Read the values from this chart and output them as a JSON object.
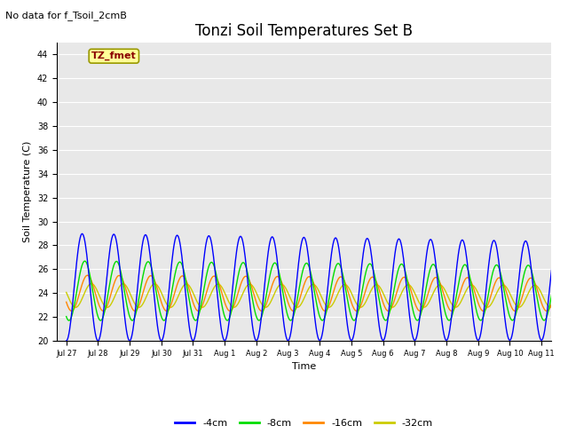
{
  "title": "Tonzi Soil Temperatures Set B",
  "no_data_text": "No data for f_Tsoil_2cmB",
  "annotation_text": "TZ_fmet",
  "annotation_color": "#8b0000",
  "annotation_bg": "#ffff99",
  "annotation_border": "#999900",
  "xlabel": "Time",
  "ylabel": "Soil Temperature (C)",
  "ylim": [
    20,
    45
  ],
  "yticks": [
    20,
    22,
    24,
    26,
    28,
    30,
    32,
    34,
    36,
    38,
    40,
    42,
    44
  ],
  "background_color": "#e8e8e8",
  "grid_color": "#ffffff",
  "title_fontsize": 12,
  "label_fontsize": 8,
  "tick_fontsize": 7,
  "nodata_fontsize": 8,
  "annot_fontsize": 8,
  "legend_fontsize": 8,
  "line_colors": {
    "-4cm": "#0000ff",
    "-8cm": "#00dd00",
    "-16cm": "#ff8800",
    "-32cm": "#cccc00"
  },
  "line_width": 1.0,
  "tick_labels": [
    "Jul 27",
    "Jul 28",
    "Jul 29",
    "Jul 30",
    "Jul 31",
    "Aug 1",
    "Aug 2",
    "Aug 3",
    "Aug 4",
    "Aug 5",
    "Aug 6",
    "Aug 7",
    "Aug 8",
    "Aug 9",
    "Aug 10",
    "Aug 11"
  ],
  "legend_labels": [
    "-4cm",
    "-8cm",
    "-16cm",
    "-32cm"
  ]
}
